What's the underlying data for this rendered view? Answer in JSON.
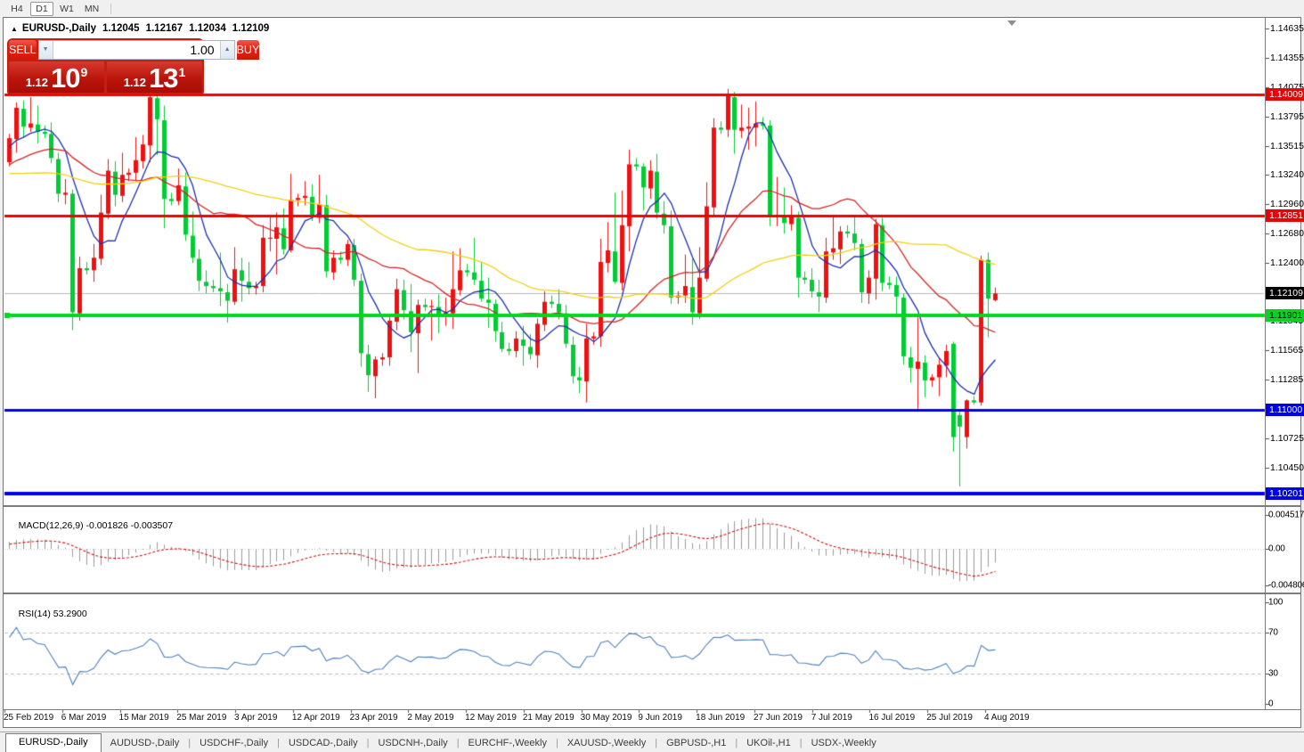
{
  "toolbar": {
    "timeframes": [
      {
        "label": "H4",
        "active": false
      },
      {
        "label": "D1",
        "active": true
      },
      {
        "label": "W1",
        "active": false
      },
      {
        "label": "MN",
        "active": false
      }
    ]
  },
  "icons": {
    "collapse": "▲",
    "spin_down": "▼",
    "spin_up": "▲",
    "scroll_marker": "▼",
    "tab_separator": "|"
  },
  "title": {
    "symbol": "EURUSD-,Daily",
    "open": "1.12045",
    "high": "1.12167",
    "low": "1.12034",
    "close": "1.12109"
  },
  "trade_panel": {
    "sell_label": "SELL",
    "buy_label": "BUY",
    "volume": "1.00",
    "sell_price_prefix": "1.12",
    "sell_price_big": "10",
    "sell_price_sup": "9",
    "buy_price_prefix": "1.12",
    "buy_price_big": "13",
    "buy_price_sup": "1"
  },
  "price_axis": {
    "ticks": [
      {
        "price": 1.14635,
        "label": "1.14635"
      },
      {
        "price": 1.14355,
        "label": "1.14355"
      },
      {
        "price": 1.14075,
        "label": "1.14075"
      },
      {
        "price": 1.13795,
        "label": "1.13795"
      },
      {
        "price": 1.13515,
        "label": "1.13515"
      },
      {
        "price": 1.1324,
        "label": "1.13240"
      },
      {
        "price": 1.1296,
        "label": "1.12960"
      },
      {
        "price": 1.1268,
        "label": "1.12680"
      },
      {
        "price": 1.124,
        "label": "1.12400"
      },
      {
        "price": 1.11845,
        "label": "1.11845"
      },
      {
        "price": 1.11565,
        "label": "1.11565"
      },
      {
        "price": 1.11285,
        "label": "1.11285"
      },
      {
        "price": 1.10725,
        "label": "1.10725"
      },
      {
        "price": 1.1045,
        "label": "1.10450"
      }
    ]
  },
  "hlines": [
    {
      "price": 1.14009,
      "label": "1.14009",
      "color": "#ee0000",
      "label_bg": "#ee0000",
      "label_fg": "#ffffff",
      "width": 3
    },
    {
      "price": 1.12851,
      "label": "1.12851",
      "color": "#ee0000",
      "label_bg": "#ee0000",
      "label_fg": "#ffffff",
      "width": 3
    },
    {
      "price": 1.11901,
      "label": "1.11901",
      "color": "#00d71e",
      "label_bg": "#00d71e",
      "label_fg": "#000000",
      "width": 4,
      "left_marker": true
    },
    {
      "price": 1.11,
      "label": "1.11000",
      "color": "#0000ee",
      "label_bg": "#0000ee",
      "label_fg": "#ffffff",
      "width": 3
    },
    {
      "price": 1.10201,
      "label": "1.10201",
      "color": "#0000ee",
      "label_bg": "#0000ee",
      "label_fg": "#ffffff",
      "width": 4
    }
  ],
  "current_price": {
    "label": "1.12109",
    "price": 1.12109,
    "line_color": "#b9b9b9",
    "label_bg": "#000000",
    "label_fg": "#ffffff"
  },
  "macd": {
    "name": "MACD(12,26,9)",
    "main_value": "-0.001826",
    "signal_value": "-0.003507",
    "ticks": [
      {
        "value": 0.004517,
        "label": "0.004517"
      },
      {
        "value": 0.0,
        "label": "0.00"
      },
      {
        "value": -0.004806,
        "label": "-0.004806"
      }
    ]
  },
  "rsi": {
    "name": "RSI(14)",
    "value": "53.2900",
    "ticks": [
      {
        "value": 100,
        "label": "100"
      },
      {
        "value": 70,
        "label": "70"
      },
      {
        "value": 30,
        "label": "30"
      },
      {
        "value": 0,
        "label": "0"
      }
    ],
    "levels": [
      70,
      30
    ]
  },
  "date_axis": {
    "labels": [
      "25 Feb 2019",
      "6 Mar 2019",
      "15 Mar 2019",
      "25 Mar 2019",
      "3 Apr 2019",
      "12 Apr 2019",
      "23 Apr 2019",
      "2 May 2019",
      "12 May 2019",
      "21 May 2019",
      "30 May 2019",
      "9 Jun 2019",
      "18 Jun 2019",
      "27 Jun 2019",
      "7 Jul 2019",
      "16 Jul 2019",
      "25 Jul 2019",
      "4 Aug 2019"
    ]
  },
  "tabs": [
    {
      "label": "EURUSD-,Daily",
      "active": true
    },
    {
      "label": "AUDUSD-,Daily",
      "active": false
    },
    {
      "label": "USDCHF-,Daily",
      "active": false
    },
    {
      "label": "USDCAD-,Daily",
      "active": false
    },
    {
      "label": "USDCNH-,Daily",
      "active": false
    },
    {
      "label": "EURCHF-,Weekly",
      "active": false
    },
    {
      "label": "XAUUSD-,Weekly",
      "active": false
    },
    {
      "label": "GBPUSD-,H1",
      "active": false
    },
    {
      "label": "UKOil-,H1",
      "active": false
    },
    {
      "label": "USDX-,Weekly",
      "active": false
    }
  ],
  "chart_data": {
    "type": "candlestick",
    "symbol": "EURUSD-",
    "timeframe": "Daily",
    "start_date": "2019-02-25",
    "end_date": "2019-08-07",
    "includes_sunday_bars": true,
    "price_range_visible": [
      1.099,
      1.147
    ],
    "colors": {
      "bullish": "#ee1111",
      "bearish": "#00cc33",
      "ma_fast": "#1c2fb0",
      "ma_mid": "#d42525",
      "ma_slow": "#f2cf10",
      "macd_hist": "#9a9a9a",
      "macd_signal": "#cc1111",
      "rsi_line": "#4f81bd"
    },
    "moving_averages": [
      {
        "period": 7,
        "color": "#1c2fb0"
      },
      {
        "period": 21,
        "color": "#d42525"
      },
      {
        "period": 50,
        "color": "#f2cf10"
      }
    ],
    "indicators": [
      {
        "name": "MACD",
        "params": [
          12,
          26,
          9
        ]
      },
      {
        "name": "RSI",
        "params": [
          14
        ]
      }
    ],
    "warmup_closes": [
      1.1412,
      1.1405,
      1.1398,
      1.139,
      1.1396,
      1.1388,
      1.138,
      1.1372,
      1.1365,
      1.1358,
      1.135,
      1.1345,
      1.1352,
      1.1344,
      1.1336,
      1.133,
      1.1325,
      1.1332,
      1.1326,
      1.1318,
      1.1312,
      1.1306,
      1.13,
      1.1295,
      1.1302,
      1.1296,
      1.129,
      1.1284,
      1.1278,
      1.1285,
      1.1292,
      1.1288,
      1.1295,
      1.1303,
      1.1298,
      1.1306,
      1.1312,
      1.1308,
      1.1315,
      1.1322,
      1.1318,
      1.1325,
      1.133,
      1.1326,
      1.1333,
      1.134,
      1.1336,
      1.1342,
      1.1338,
      1.1345,
      1.135,
      1.1346,
      1.1352,
      1.1348,
      1.1355
    ],
    "candles": [
      [
        1.1336,
        1.1363,
        1.1332,
        1.1359
      ],
      [
        1.1358,
        1.1393,
        1.1345,
        1.1388
      ],
      [
        1.1387,
        1.1395,
        1.136,
        1.137
      ],
      [
        1.1369,
        1.1398,
        1.1365,
        1.1373
      ],
      [
        1.1372,
        1.139,
        1.1354,
        1.1365
      ],
      [
        1.1365,
        1.1371,
        1.1359,
        1.1363
      ],
      [
        1.1363,
        1.1374,
        1.1335,
        1.134
      ],
      [
        1.1339,
        1.1345,
        1.1298,
        1.1306
      ],
      [
        1.1305,
        1.132,
        1.1296,
        1.1307
      ],
      [
        1.1306,
        1.131,
        1.1176,
        1.1193
      ],
      [
        1.1192,
        1.1246,
        1.1185,
        1.1235
      ],
      [
        1.1235,
        1.1241,
        1.1229,
        1.1233
      ],
      [
        1.1233,
        1.1258,
        1.1222,
        1.1245
      ],
      [
        1.1244,
        1.1305,
        1.1238,
        1.1288
      ],
      [
        1.1287,
        1.1339,
        1.1282,
        1.1328
      ],
      [
        1.1327,
        1.1337,
        1.1294,
        1.1305
      ],
      [
        1.1304,
        1.1345,
        1.1298,
        1.1324
      ],
      [
        1.1324,
        1.133,
        1.1318,
        1.1326
      ],
      [
        1.1326,
        1.136,
        1.1318,
        1.1338
      ],
      [
        1.1337,
        1.1362,
        1.133,
        1.1353
      ],
      [
        1.1352,
        1.1405,
        1.1336,
        1.1398
      ],
      [
        1.1397,
        1.1408,
        1.1343,
        1.1377
      ],
      [
        1.1376,
        1.139,
        1.1273,
        1.1301
      ],
      [
        1.1301,
        1.1307,
        1.1295,
        1.1299
      ],
      [
        1.1299,
        1.133,
        1.1295,
        1.1314
      ],
      [
        1.1313,
        1.1326,
        1.1261,
        1.1267
      ],
      [
        1.1266,
        1.1289,
        1.124,
        1.1245
      ],
      [
        1.1244,
        1.1253,
        1.1213,
        1.1223
      ],
      [
        1.1222,
        1.1233,
        1.1211,
        1.1218
      ],
      [
        1.1218,
        1.1224,
        1.1212,
        1.1216
      ],
      [
        1.1216,
        1.125,
        1.1199,
        1.1213
      ],
      [
        1.1212,
        1.122,
        1.1183,
        1.1204
      ],
      [
        1.1203,
        1.1255,
        1.12,
        1.1234
      ],
      [
        1.1233,
        1.1245,
        1.1203,
        1.1223
      ],
      [
        1.1222,
        1.1241,
        1.121,
        1.1216
      ],
      [
        1.1216,
        1.1222,
        1.121,
        1.1218
      ],
      [
        1.1218,
        1.1276,
        1.1212,
        1.1264
      ],
      [
        1.1263,
        1.1285,
        1.1251,
        1.1264
      ],
      [
        1.1263,
        1.1288,
        1.1229,
        1.1274
      ],
      [
        1.1273,
        1.1292,
        1.1248,
        1.1253
      ],
      [
        1.1252,
        1.1325,
        1.125,
        1.13
      ],
      [
        1.13,
        1.1306,
        1.1294,
        1.1302
      ],
      [
        1.1302,
        1.1318,
        1.1295,
        1.1304
      ],
      [
        1.1303,
        1.1315,
        1.128,
        1.1284
      ],
      [
        1.1283,
        1.1324,
        1.1278,
        1.1296
      ],
      [
        1.1295,
        1.1305,
        1.1226,
        1.1232
      ],
      [
        1.1231,
        1.1252,
        1.1224,
        1.1245
      ],
      [
        1.1245,
        1.1251,
        1.1239,
        1.1243
      ],
      [
        1.1243,
        1.1262,
        1.1237,
        1.1258
      ],
      [
        1.1257,
        1.1263,
        1.1218,
        1.1224
      ],
      [
        1.1223,
        1.123,
        1.1141,
        1.1154
      ],
      [
        1.1153,
        1.1162,
        1.1117,
        1.1133
      ],
      [
        1.1132,
        1.1151,
        1.1111,
        1.1148
      ],
      [
        1.1148,
        1.1154,
        1.1142,
        1.115
      ],
      [
        1.115,
        1.1188,
        1.1142,
        1.1185
      ],
      [
        1.1184,
        1.1225,
        1.1176,
        1.1215
      ],
      [
        1.1214,
        1.1224,
        1.1186,
        1.1195
      ],
      [
        1.1194,
        1.122,
        1.1155,
        1.1174
      ],
      [
        1.1173,
        1.1205,
        1.1135,
        1.12
      ],
      [
        1.12,
        1.1206,
        1.1194,
        1.1198
      ],
      [
        1.1198,
        1.1205,
        1.1166,
        1.1199
      ],
      [
        1.1198,
        1.121,
        1.1173,
        1.119
      ],
      [
        1.1189,
        1.1207,
        1.118,
        1.1193
      ],
      [
        1.1192,
        1.1251,
        1.1177,
        1.1215
      ],
      [
        1.1214,
        1.1254,
        1.1209,
        1.1233
      ],
      [
        1.1233,
        1.1239,
        1.1227,
        1.1231
      ],
      [
        1.1231,
        1.1264,
        1.1219,
        1.1224
      ],
      [
        1.1223,
        1.124,
        1.1203,
        1.1206
      ],
      [
        1.1205,
        1.1226,
        1.1178,
        1.1202
      ],
      [
        1.1201,
        1.1205,
        1.1165,
        1.1175
      ],
      [
        1.1174,
        1.1184,
        1.1155,
        1.1158
      ],
      [
        1.1158,
        1.1164,
        1.1152,
        1.1156
      ],
      [
        1.1156,
        1.1175,
        1.115,
        1.1168
      ],
      [
        1.1167,
        1.118,
        1.1142,
        1.1161
      ],
      [
        1.116,
        1.1172,
        1.1148,
        1.1153
      ],
      [
        1.1152,
        1.1187,
        1.114,
        1.1182
      ],
      [
        1.1181,
        1.1213,
        1.1175,
        1.1203
      ],
      [
        1.1203,
        1.1209,
        1.1197,
        1.1201
      ],
      [
        1.1201,
        1.1215,
        1.1186,
        1.1193
      ],
      [
        1.1192,
        1.12,
        1.1159,
        1.1163
      ],
      [
        1.1162,
        1.117,
        1.1125,
        1.1132
      ],
      [
        1.1131,
        1.1141,
        1.1116,
        1.1128
      ],
      [
        1.1127,
        1.1182,
        1.1107,
        1.1168
      ],
      [
        1.1168,
        1.1174,
        1.1162,
        1.117
      ],
      [
        1.117,
        1.1263,
        1.116,
        1.1241
      ],
      [
        1.124,
        1.1279,
        1.1231,
        1.1252
      ],
      [
        1.1251,
        1.1307,
        1.122,
        1.1222
      ],
      [
        1.1221,
        1.1309,
        1.1214,
        1.1276
      ],
      [
        1.1275,
        1.1348,
        1.1251,
        1.1334
      ],
      [
        1.1334,
        1.134,
        1.1328,
        1.1332
      ],
      [
        1.1332,
        1.1335,
        1.129,
        1.1312
      ],
      [
        1.1311,
        1.1338,
        1.1301,
        1.1328
      ],
      [
        1.1327,
        1.1344,
        1.1282,
        1.1288
      ],
      [
        1.1287,
        1.1299,
        1.1268,
        1.1276
      ],
      [
        1.1275,
        1.129,
        1.1201,
        1.1207
      ],
      [
        1.1207,
        1.1213,
        1.1201,
        1.1209
      ],
      [
        1.1209,
        1.1248,
        1.1202,
        1.1218
      ],
      [
        1.1217,
        1.1244,
        1.1181,
        1.1193
      ],
      [
        1.1192,
        1.1255,
        1.1187,
        1.1226
      ],
      [
        1.1225,
        1.1317,
        1.1222,
        1.1294
      ],
      [
        1.1293,
        1.1378,
        1.1286,
        1.1369
      ],
      [
        1.1369,
        1.1375,
        1.1363,
        1.1367
      ],
      [
        1.1367,
        1.1406,
        1.136,
        1.1399
      ],
      [
        1.1398,
        1.1403,
        1.1344,
        1.1367
      ],
      [
        1.1366,
        1.1391,
        1.1359,
        1.1369
      ],
      [
        1.1368,
        1.1388,
        1.1348,
        1.137
      ],
      [
        1.1369,
        1.1394,
        1.1351,
        1.1373
      ],
      [
        1.1373,
        1.1379,
        1.1367,
        1.1371
      ],
      [
        1.1371,
        1.1376,
        1.1275,
        1.1285
      ],
      [
        1.1284,
        1.1322,
        1.1275,
        1.1285
      ],
      [
        1.1284,
        1.1312,
        1.1268,
        1.1278
      ],
      [
        1.1277,
        1.1295,
        1.1271,
        1.1284
      ],
      [
        1.1283,
        1.1289,
        1.1207,
        1.1226
      ],
      [
        1.1226,
        1.1232,
        1.122,
        1.1224
      ],
      [
        1.1224,
        1.1235,
        1.1207,
        1.1213
      ],
      [
        1.1212,
        1.1224,
        1.1193,
        1.1208
      ],
      [
        1.1207,
        1.1264,
        1.1202,
        1.1251
      ],
      [
        1.125,
        1.1286,
        1.1243,
        1.1254
      ],
      [
        1.1253,
        1.1275,
        1.1239,
        1.127
      ],
      [
        1.127,
        1.1276,
        1.1264,
        1.1268
      ],
      [
        1.1268,
        1.1284,
        1.1252,
        1.1259
      ],
      [
        1.1258,
        1.1263,
        1.1202,
        1.1212
      ],
      [
        1.1211,
        1.1233,
        1.1201,
        1.1226
      ],
      [
        1.1225,
        1.1282,
        1.1205,
        1.1277
      ],
      [
        1.1276,
        1.1283,
        1.1213,
        1.1221
      ],
      [
        1.1221,
        1.1227,
        1.1215,
        1.1219
      ],
      [
        1.1219,
        1.1227,
        1.1188,
        1.1208
      ],
      [
        1.1207,
        1.1211,
        1.1143,
        1.1151
      ],
      [
        1.115,
        1.116,
        1.1126,
        1.114
      ],
      [
        1.1139,
        1.1188,
        1.1101,
        1.1146
      ],
      [
        1.1145,
        1.1152,
        1.1112,
        1.1128
      ],
      [
        1.1128,
        1.1134,
        1.1122,
        1.1131
      ],
      [
        1.1131,
        1.115,
        1.1113,
        1.1143
      ],
      [
        1.1142,
        1.1162,
        1.1131,
        1.1156
      ],
      [
        1.1163,
        1.1165,
        1.106,
        1.1074
      ],
      [
        1.1095,
        1.1098,
        1.1027,
        1.1084
      ],
      [
        1.1074,
        1.111,
        1.1063,
        1.1109
      ],
      [
        1.1109,
        1.1113,
        1.1105,
        1.1107
      ],
      [
        1.1107,
        1.1247,
        1.1104,
        1.1243
      ],
      [
        1.1243,
        1.125,
        1.1169,
        1.1206
      ],
      [
        1.12045,
        1.12167,
        1.12034,
        1.12109
      ]
    ]
  }
}
